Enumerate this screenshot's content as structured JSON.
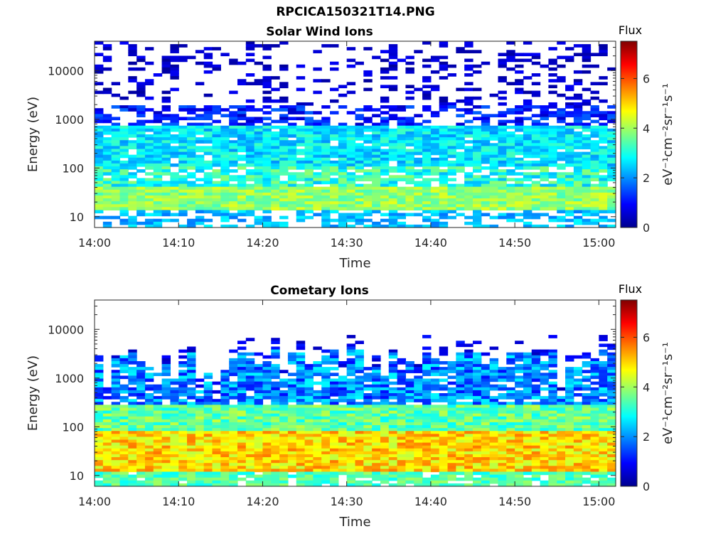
{
  "figure_title": "RPCICA150321T14.PNG",
  "colorbar": {
    "title": "Flux",
    "label": "eV⁻¹cm⁻²sr⁻¹s⁻¹",
    "ticks": [
      "0",
      "2",
      "4",
      "6"
    ],
    "range": [
      0,
      7.5
    ],
    "colormap": "jet"
  },
  "chart_data": [
    {
      "type": "heatmap",
      "title": "Solar Wind Ions",
      "xlabel": "Time",
      "ylabel": "Energy (eV)",
      "x_ticks": [
        "14:00",
        "14:10",
        "14:20",
        "14:30",
        "14:40",
        "14:50",
        "15:00"
      ],
      "x_range": [
        "14:00",
        "15:02"
      ],
      "y_scale": "log",
      "y_ticks": [
        "10",
        "100",
        "1000",
        "10000"
      ],
      "y_range": [
        6,
        40000
      ],
      "value_range": [
        0,
        7.5
      ],
      "grid": false,
      "description_values": "Sparse low flux (~0.5-1) above 1000 eV; moderate flux (~2-3.5) between 50 and 700 eV; strongest flux (~3.5-4.5) near 15-30 eV"
    },
    {
      "type": "heatmap",
      "title": "Cometary Ions",
      "xlabel": "Time",
      "ylabel": "Energy (eV)",
      "x_ticks": [
        "14:00",
        "14:10",
        "14:20",
        "14:30",
        "14:40",
        "14:50",
        "15:00"
      ],
      "x_range": [
        "14:00",
        "15:02"
      ],
      "y_scale": "log",
      "y_ticks": [
        "10",
        "100",
        "1000",
        "10000"
      ],
      "y_range": [
        6,
        40000
      ],
      "value_range": [
        0,
        7.5
      ],
      "grid": false,
      "description_values": "Low flux (~1-2.5) from 300 to 5000 eV; flux ~3-4 from 100 to 300 eV; highest flux (~4.5-5.5) between 15 and 80 eV"
    }
  ]
}
